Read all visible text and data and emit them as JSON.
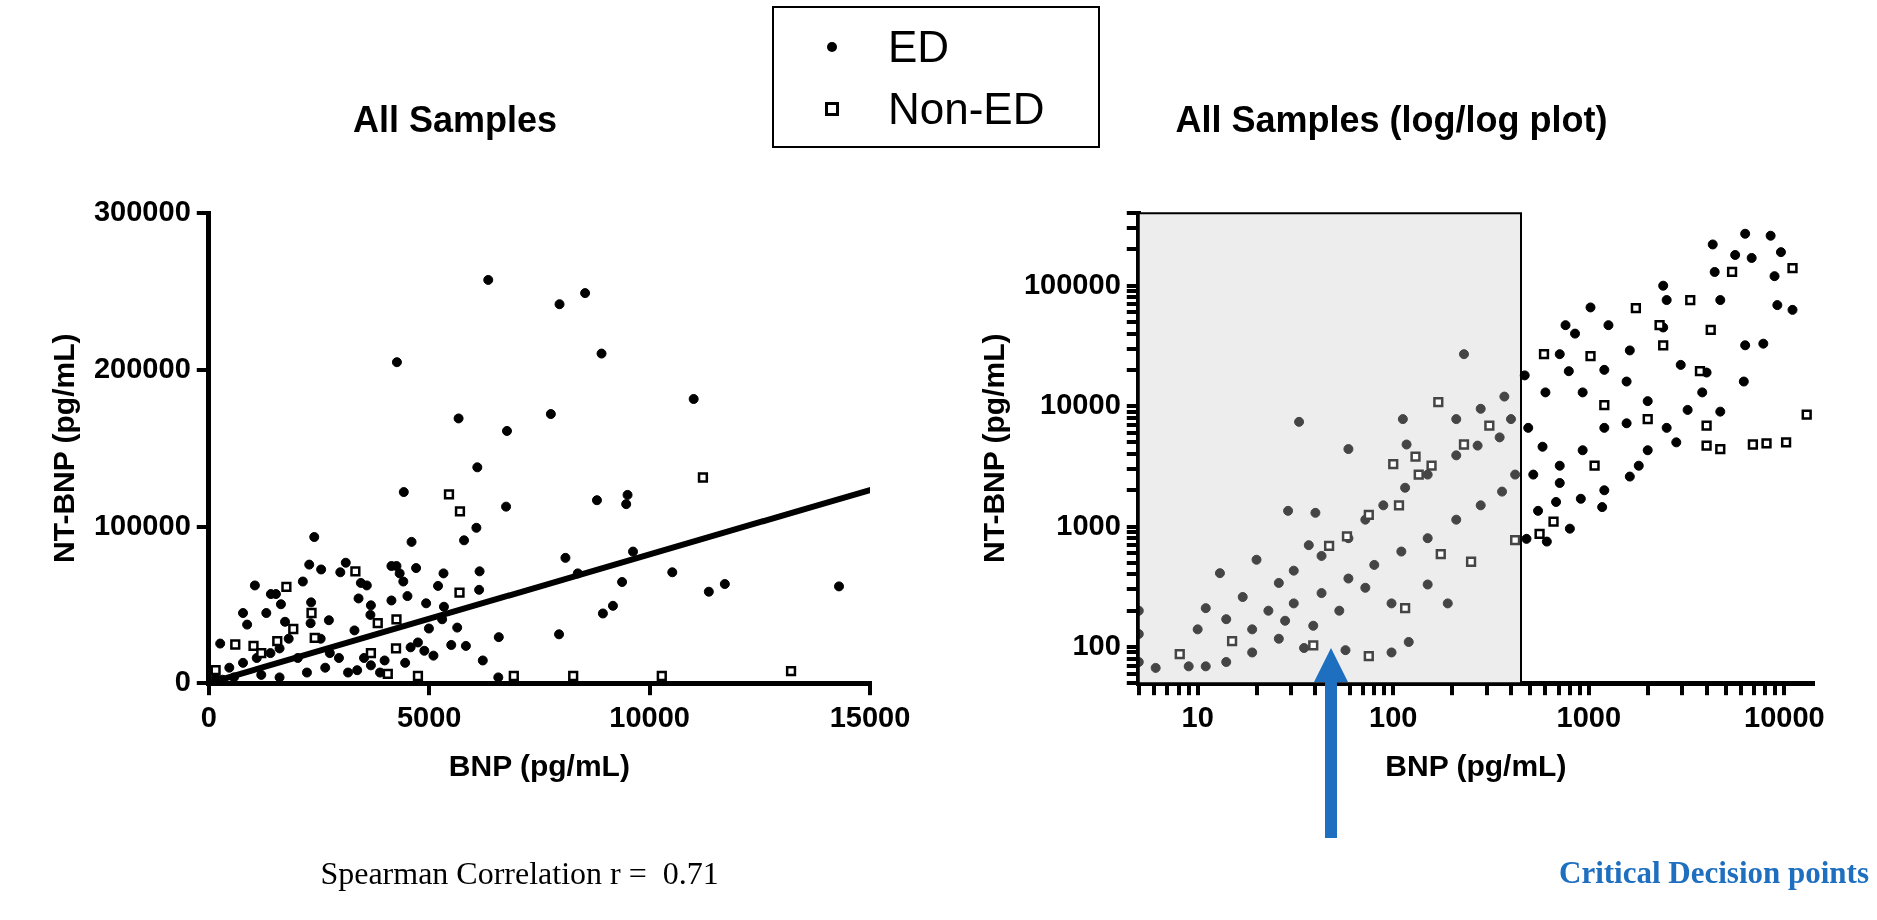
{
  "chart_data": [
    {
      "type": "scatter",
      "title": "All Samples",
      "xlabel": "BNP (pg/mL)",
      "ylabel": "NT-BNP (pg/mL)",
      "xlim": [
        0,
        15000
      ],
      "xticks": [
        0,
        5000,
        10000,
        15000
      ],
      "ylim": [
        0,
        300000
      ],
      "yticks": [
        0,
        100000,
        200000,
        300000
      ],
      "grid": false,
      "legend": "top right",
      "annotations": [
        "Spearman Correlation r =  0.71"
      ],
      "series": [
        {
          "name": "ED",
          "color": "#000000",
          "marker": "circle",
          "x": [
            6340,
            7957,
            8537,
            8910,
            4268,
            11000,
            7760,
            5667,
            6765,
            6092,
            4424,
            6744,
            8806,
            9500,
            9469,
            6071,
            5791,
            4600,
            2393,
            8091,
            9624,
            10515,
            8371,
            11707,
            11344,
            14297,
            9376,
            8941,
            9169,
            7946,
            6579,
            6216,
            5636,
            5501,
            5833,
            6143,
            6133,
            5325,
            5201,
            5335,
            4931,
            5294,
            4994,
            5097,
            4703,
            4507,
            4413,
            4330,
            4144,
            4258,
            4144,
            3108,
            2984,
            2549,
            2279,
            2134,
            1046,
            1409,
            1523,
            1637,
            2321,
            777,
            1305,
            870,
            259,
            2310,
            2725,
            1730,
            3398,
            3450,
            3585,
            3678,
            3667,
            3305,
            4745,
            4579,
            4455,
            4890,
            6568,
            155,
            466,
            777,
            1088,
            1399,
            1606,
            1813,
            2020,
            2227,
            2642,
            2953,
            3160,
            3367,
            3678,
            3885,
            3989,
            570,
            311,
            1191,
            1606,
            2538,
            2746,
            3522
          ],
          "values": [
            257400,
            241900,
            249000,
            210400,
            204900,
            181400,
            171800,
            169000,
            161000,
            137800,
            122000,
            112700,
            116800,
            120200,
            114300,
            99200,
            91200,
            90200,
            93300,
            80000,
            84000,
            70800,
            70100,
            63300,
            58400,
            61800,
            64600,
            44500,
            49400,
            31200,
            29400,
            14500,
            35500,
            24400,
            23800,
            71400,
            59600,
            70100,
            62100,
            48800,
            51000,
            40800,
            34900,
            17600,
            73500,
            55600,
            64900,
            70100,
            74800,
            74800,
            52800,
            76900,
            70800,
            72600,
            75700,
            64900,
            62400,
            56900,
            56900,
            50400,
            51600,
            44800,
            44800,
            37400,
            25300,
            38300,
            40200,
            39200,
            54100,
            64000,
            62400,
            49700,
            43600,
            33700,
            26000,
            22900,
            13000,
            20700,
            3700,
            3700,
            9900,
            13000,
            16100,
            19200,
            22200,
            28400,
            16100,
            6800,
            9900,
            16100,
            6800,
            8300,
            11400,
            6800,
            14500,
            3700,
            2200,
            5300,
            3700,
            28400,
            19200,
            16100
          ]
        },
        {
          "name": "Non-ED",
          "color": "#000000",
          "marker": "square",
          "x": [
            11210,
            5449,
            5698,
            3326,
            1761,
            5688,
            4258,
            3833,
            2331,
            2404,
            1917,
            601,
            1015,
            4248,
            3678,
            6920,
            8267,
            10277,
            13209,
            4745,
            4061,
            1554,
            1191,
            155
          ],
          "values": [
            131300,
            120500,
            109700,
            71400,
            61500,
            57800,
            40800,
            38300,
            44800,
            29000,
            34600,
            24700,
            23800,
            22200,
            19200,
            4600,
            4600,
            4600,
            7700,
            4600,
            5900,
            26900,
            19200,
            8300
          ]
        },
        {
          "type": "line",
          "color": "#000000",
          "marker": "none",
          "x": [
            0,
            15000
          ],
          "values": [
            0,
            123300
          ]
        }
      ]
    },
    {
      "type": "scatter",
      "title": "All Samples (log/log plot)",
      "xlabel": "BNP (pg/mL)",
      "ylabel": "NT-BNP (pg/mL)",
      "log": "xy",
      "xlim": [
        5,
        14000
      ],
      "ylim": [
        50,
        400000
      ],
      "grid": false,
      "legend": false,
      "xticks": [
        {
          "value": 5,
          "label": null
        },
        {
          "value": 6,
          "label": null
        },
        {
          "value": 7,
          "label": null
        },
        {
          "value": 8,
          "label": null
        },
        {
          "value": 9,
          "label": null
        },
        10,
        {
          "value": 20,
          "label": null
        },
        {
          "value": 30,
          "label": null
        },
        {
          "value": 40,
          "label": null
        },
        {
          "value": 50,
          "label": null
        },
        {
          "value": 60,
          "label": null
        },
        {
          "value": 70,
          "label": null
        },
        {
          "value": 80,
          "label": null
        },
        {
          "value": 90,
          "label": null
        },
        100,
        {
          "value": 200,
          "label": null
        },
        {
          "value": 300,
          "label": null
        },
        {
          "value": 400,
          "label": null
        },
        {
          "value": 500,
          "label": null
        },
        {
          "value": 600,
          "label": null
        },
        {
          "value": 700,
          "label": null
        },
        {
          "value": 800,
          "label": null
        },
        {
          "value": 900,
          "label": null
        },
        1000,
        {
          "value": 2000,
          "label": null
        },
        {
          "value": 3000,
          "label": null
        },
        {
          "value": 4000,
          "label": null
        },
        {
          "value": 5000,
          "label": null
        },
        {
          "value": 6000,
          "label": null
        },
        {
          "value": 7000,
          "label": null
        },
        {
          "value": 8000,
          "label": null
        },
        {
          "value": 9000,
          "label": null
        },
        10000
      ],
      "yticks": [
        {
          "value": 50,
          "label": null
        },
        {
          "value": 60,
          "label": null
        },
        {
          "value": 70,
          "label": null
        },
        {
          "value": 80,
          "label": null
        },
        {
          "value": 90,
          "label": null
        },
        100,
        {
          "value": 200,
          "label": null
        },
        {
          "value": 300,
          "label": null
        },
        {
          "value": 400,
          "label": null
        },
        {
          "value": 500,
          "label": null
        },
        {
          "value": 600,
          "label": null
        },
        {
          "value": 700,
          "label": null
        },
        {
          "value": 800,
          "label": null
        },
        {
          "value": 900,
          "label": null
        },
        1000,
        {
          "value": 2000,
          "label": null
        },
        {
          "value": 3000,
          "label": null
        },
        {
          "value": 4000,
          "label": null
        },
        {
          "value": 5000,
          "label": null
        },
        {
          "value": 6000,
          "label": null
        },
        {
          "value": 7000,
          "label": null
        },
        {
          "value": 8000,
          "label": null
        },
        {
          "value": 9000,
          "label": null
        },
        10000,
        {
          "value": 20000,
          "label": null
        },
        {
          "value": 30000,
          "label": null
        },
        {
          "value": 40000,
          "label": null
        },
        {
          "value": 50000,
          "label": null
        },
        {
          "value": 60000,
          "label": null
        },
        {
          "value": 70000,
          "label": null
        },
        {
          "value": 80000,
          "label": null
        },
        {
          "value": 90000,
          "label": null
        },
        100000,
        {
          "value": 200000,
          "label": null
        },
        {
          "value": 300000,
          "label": null
        },
        {
          "value": 400000,
          "label": null
        }
      ],
      "bands": [
        {
          "axis": "x",
          "from": 5,
          "to": 450,
          "color": "#e6e6e6"
        }
      ],
      "annotations": [
        "Critical Decision points"
      ],
      "series": [
        {
          "color": "#000000",
          "marker": "circle",
          "x": [
            6300,
            8500,
            4300,
            5600,
            6800,
            9600,
            4400,
            8900,
            2400,
            2500,
            4700,
            1020,
            9200,
            11000,
            1260,
            760,
            2400,
            7800,
            6300,
            850,
            230,
            470,
            710,
            790,
            2950,
            6200,
            1620,
            3800,
            2000,
            4700,
            2800,
            1200,
            600,
            370,
            280,
            930,
            1560,
            1800,
            1620,
            1170,
            800,
            610,
            480,
            910,
            1200,
            680,
            550,
            710,
            580,
            930,
            1560,
            2500,
            3200,
            4000,
            1200,
            490,
            520,
            710,
            2000,
            33,
            112,
            59,
            117,
            29,
            40,
            37,
            20,
            13,
            11,
            10,
            6.1,
            9,
            14,
            17,
            26,
            31,
            43,
            59,
            72,
            89,
            115,
            150,
            210,
            270,
            350,
            400,
            210,
            190,
            120,
            98,
            57,
            35,
            26,
            19,
            14,
            23,
            31,
            43,
            59,
            80,
            110,
            150,
            210,
            280,
            360,
            420,
            72,
            98,
            150,
            53,
            39,
            28,
            19,
            11,
            5,
            5,
            5
          ],
          "values": [
            270000,
            260000,
            220000,
            180000,
            170000,
            190000,
            130000,
            120000,
            100000,
            76000,
            76000,
            66000,
            69000,
            63000,
            47000,
            47000,
            45000,
            33000,
            32000,
            40000,
            27000,
            18000,
            27000,
            19500,
            22000,
            16000,
            29000,
            13000,
            11000,
            9000,
            5000,
            6600,
            13000,
            12000,
            9500,
            13000,
            16000,
            3200,
            2600,
            1450,
            960,
            750,
            790,
            1700,
            2000,
            1600,
            1350,
            3200,
            4600,
            4300,
            7200,
            6600,
            9300,
            19000,
            20000,
            6600,
            2700,
            2300,
            4300,
            7400,
            7800,
            4400,
            4800,
            1350,
            1300,
            700,
            530,
            410,
            210,
            140,
            67,
            69,
            170,
            260,
            340,
            430,
            570,
            800,
            1140,
            1500,
            2100,
            2700,
            3900,
            4700,
            5500,
            7800,
            7800,
            230,
            110,
            90,
            94,
            98,
            117,
            90,
            75,
            200,
            230,
            280,
            370,
            480,
            620,
            800,
            1140,
            1500,
            1950,
            2700,
            310,
            230,
            330,
            200,
            150,
            165,
            140,
            69,
            200,
            128,
            75
          ]
        },
        {
          "color": "#000000",
          "marker": "square",
          "x": [
            11000,
            5400,
            1740,
            3300,
            4200,
            2300,
            3700,
            2400,
            590,
            1020,
            13000,
            10200,
            8100,
            6900,
            4700,
            4000,
            4000,
            170,
            660,
            560,
            1070,
            2000,
            1200,
            310,
            230,
            130,
            100,
            135,
            75,
            58,
            47,
            250,
            175,
            420,
            115,
            75,
            8.1,
            15,
            39,
            107,
            157
          ],
          "values": [
            140000,
            130000,
            65000,
            76000,
            43000,
            47000,
            19500,
            32000,
            27000,
            26000,
            8500,
            5000,
            4900,
            4800,
            4400,
            4700,
            6900,
            10800,
            1100,
            870,
            3200,
            7800,
            10200,
            6900,
            4800,
            3800,
            3300,
            2700,
            1250,
            830,
            690,
            510,
            590,
            770,
            210,
            84,
            87,
            112,
            103,
            1500,
            3200
          ]
        }
      ]
    }
  ]
}
